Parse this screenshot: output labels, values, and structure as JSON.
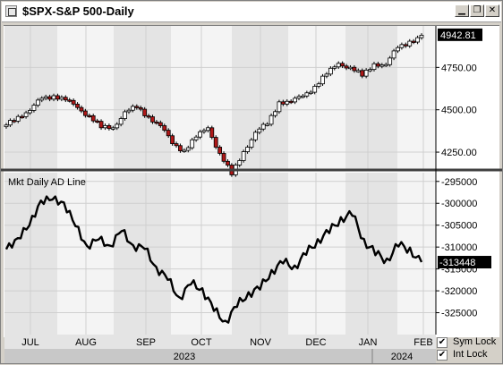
{
  "window": {
    "title": "$SPX-S&P 500-Daily",
    "minimize_icon": "minimize-icon",
    "restore_icon": "restore-icon",
    "close_icon": "close-icon"
  },
  "colors": {
    "down_candle": "#b01818",
    "up_candle": "#ffffff",
    "price_label_bg": "#000000",
    "shade_dark": "#e4e4e4",
    "shade_light": "#f4f4f4",
    "grid": "#cfcfcf"
  },
  "upper_panel": {
    "price_label": "4942.81",
    "y_ticks": [
      "4750.00",
      "4500.00",
      "4250.00"
    ]
  },
  "lower_panel": {
    "title": "Mkt Daily AD Line",
    "value_label": "-313448",
    "y_ticks": [
      "-295000",
      "-300000",
      "-305000",
      "-310000",
      "-315000",
      "-320000",
      "-325000"
    ]
  },
  "x_axis": {
    "months": [
      "JUL",
      "AUG",
      "SEP",
      "OCT",
      "NOV",
      "DEC",
      "JAN",
      "FEB"
    ],
    "years": [
      "2023",
      "2024"
    ]
  },
  "controls": {
    "sym_lock_label": "Sym Lock",
    "sym_lock_checked": true,
    "int_lock_label": "Int Lock",
    "int_lock_checked": true
  },
  "chart_data": [
    {
      "type": "candlestick",
      "title": "$SPX-S&P 500-Daily",
      "ylim": [
        4150,
        5000
      ],
      "last_value": 4942.81,
      "approx_closes": [
        {
          "month": "JUL",
          "values": [
            4410,
            4450,
            4510,
            4560,
            4580
          ]
        },
        {
          "month": "AUG",
          "values": [
            4570,
            4500,
            4470,
            4400,
            4380
          ]
        },
        {
          "month": "SEP",
          "values": [
            4500,
            4510,
            4450,
            4420,
            4290
          ]
        },
        {
          "month": "OCT",
          "values": [
            4260,
            4350,
            4380,
            4250,
            4120
          ]
        },
        {
          "month": "NOV",
          "values": [
            4240,
            4380,
            4410,
            4540,
            4560
          ]
        },
        {
          "month": "DEC",
          "values": [
            4570,
            4640,
            4720,
            4760,
            4760
          ]
        },
        {
          "month": "JAN",
          "values": [
            4700,
            4760,
            4780,
            4860,
            4900
          ]
        },
        {
          "month": "FEB",
          "values": [
            4940
          ]
        }
      ]
    },
    {
      "type": "line",
      "title": "Mkt Daily AD Line",
      "ylim": [
        -330000,
        -293000
      ],
      "last_value": -313448,
      "approx_values": [
        {
          "month": "JUL",
          "values": [
            -310500,
            -308000,
            -305000,
            -299500,
            -299000
          ]
        },
        {
          "month": "AUG",
          "values": [
            -300000,
            -305000,
            -310000,
            -308000,
            -310000
          ]
        },
        {
          "month": "SEP",
          "values": [
            -306000,
            -310000,
            -310000,
            -315000,
            -317000
          ]
        },
        {
          "month": "OCT",
          "values": [
            -322000,
            -318000,
            -320000,
            -324000,
            -327500
          ]
        },
        {
          "month": "NOV",
          "values": [
            -323000,
            -321000,
            -319000,
            -316000,
            -313000
          ]
        },
        {
          "month": "DEC",
          "values": [
            -315000,
            -311000,
            -309000,
            -306000,
            -304000
          ]
        },
        {
          "month": "JAN",
          "values": [
            -302000,
            -309000,
            -311000,
            -313500,
            -309000
          ]
        },
        {
          "month": "FEB",
          "values": [
            -311000,
            -313448
          ]
        }
      ]
    }
  ]
}
